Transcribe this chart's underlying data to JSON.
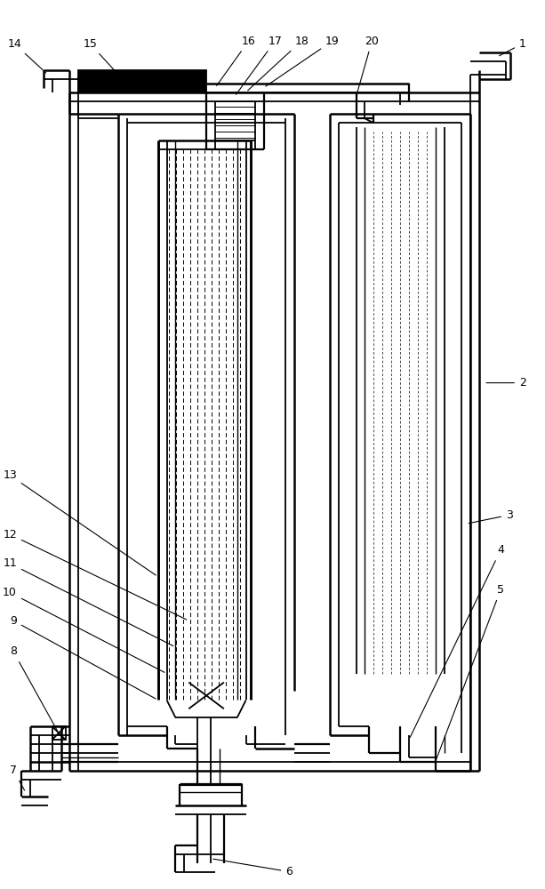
{
  "bg_color": "#ffffff",
  "lc": "#000000",
  "lw": 1.3,
  "figsize": [
    6.13,
    10.0
  ],
  "dpi": 100
}
